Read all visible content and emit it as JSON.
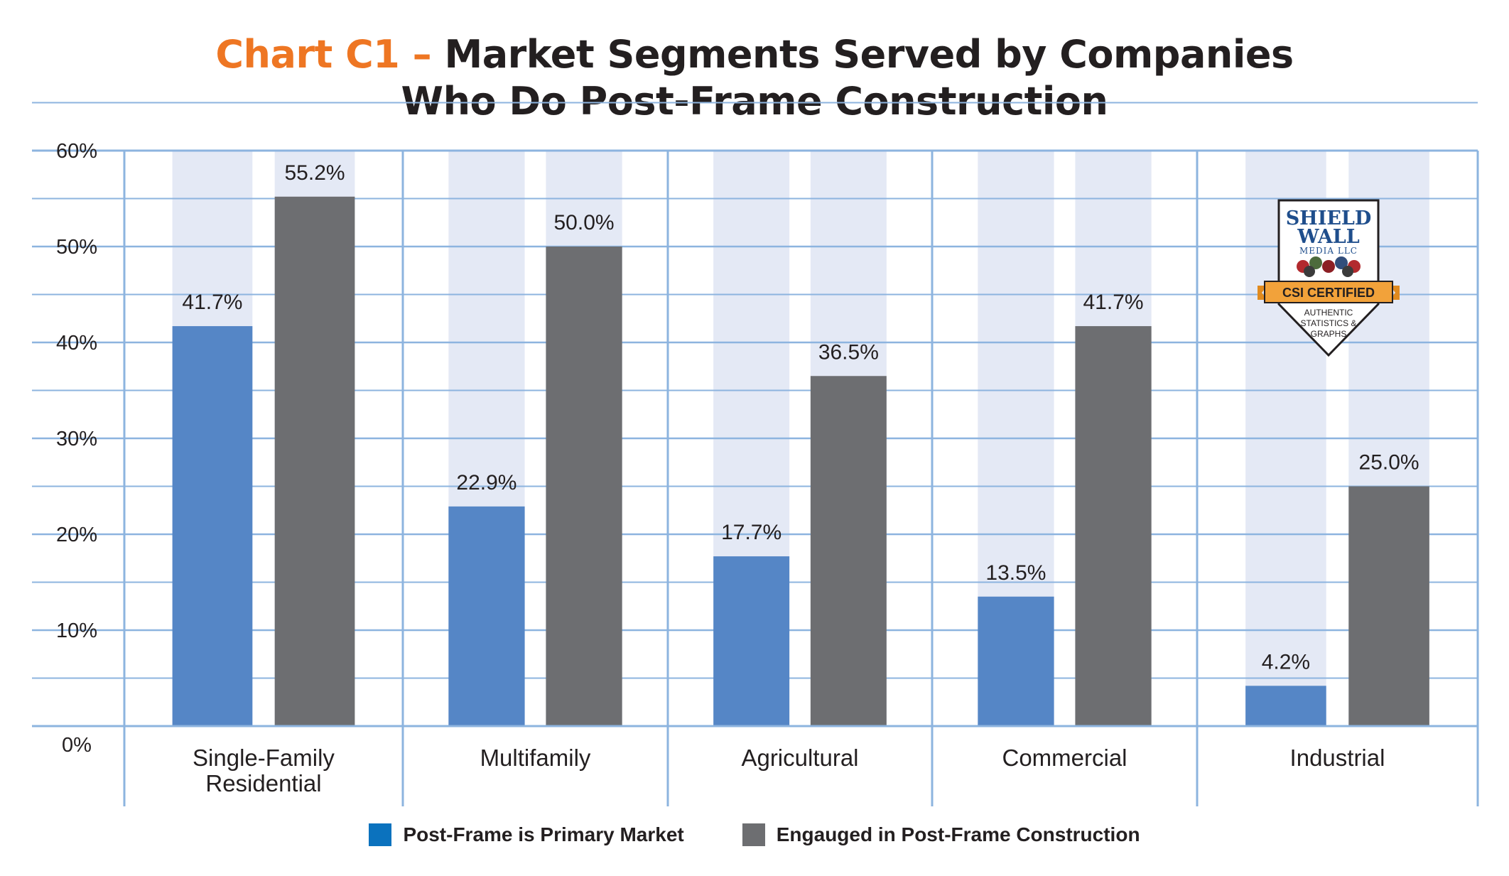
{
  "title": {
    "prefix": "Chart C1 –",
    "line1": "Market Segments Served by Companies",
    "line2": "Who Do Post-Frame Construction"
  },
  "colors": {
    "primary_bar": "#5586c6",
    "engaged_bar": "#6d6e71",
    "bar_background": "#e4e9f5",
    "grid": "#8db4df",
    "title_accent": "#ee7623",
    "legend_primary": "#0b72be"
  },
  "legend": {
    "primary": "Post-Frame is Primary Market",
    "engaged": "Engauged in Post-Frame Construction"
  },
  "badge": {
    "line1": "SHIELD",
    "line2": "WALL",
    "line3": "MEDIA LLC",
    "ribbon": "CSI CERTIFIED",
    "sub1": "AUTHENTIC",
    "sub2": "STATISTICS &",
    "sub3": "GRAPHS"
  },
  "chart_data": {
    "type": "bar",
    "categories": [
      [
        "Single-Family",
        "Residential"
      ],
      [
        "Multifamily"
      ],
      [
        "Agricultural"
      ],
      [
        "Commercial"
      ],
      [
        "Industrial"
      ]
    ],
    "series": [
      {
        "name": "Post-Frame is Primary Market",
        "values": [
          41.7,
          22.9,
          17.7,
          13.5,
          4.2
        ],
        "labels": [
          "41.7%",
          "22.9%",
          "17.7%",
          "13.5%",
          "4.2%"
        ]
      },
      {
        "name": "Engauged in Post-Frame Construction",
        "values": [
          55.2,
          50.0,
          36.5,
          41.7,
          25.0
        ],
        "labels": [
          "55.2%",
          "50.0%",
          "36.5%",
          "41.7%",
          "25.0%"
        ]
      }
    ],
    "yticks": [
      "0%",
      "10%",
      "20%",
      "30%",
      "40%",
      "50%",
      "60%"
    ],
    "ylim": [
      0,
      60
    ],
    "grid": true,
    "legend_position": "bottom"
  }
}
